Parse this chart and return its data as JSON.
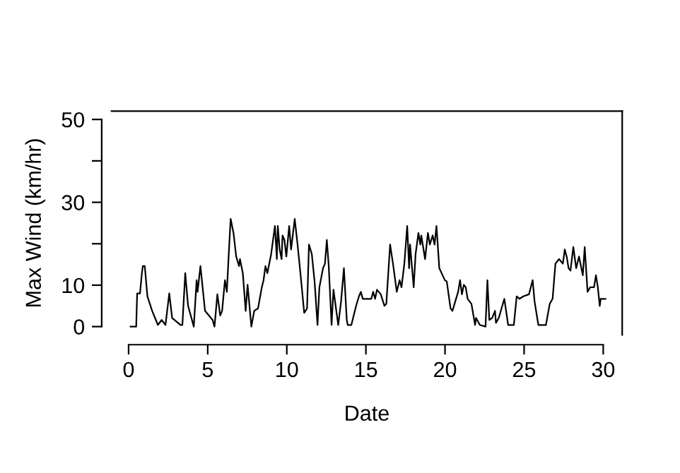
{
  "chart_data": {
    "type": "line",
    "xlabel": "Date",
    "ylabel": "Max Wind (km/hr)",
    "x": [
      0.12,
      0.48,
      0.54,
      0.72,
      0.84,
      0.9,
      1.02,
      1.19,
      1.49,
      1.85,
      2.09,
      2.33,
      2.57,
      2.75,
      3.28,
      3.4,
      3.58,
      3.76,
      4.12,
      4.3,
      4.36,
      4.54,
      4.83,
      5.31,
      5.43,
      5.61,
      5.79,
      5.91,
      6.09,
      6.21,
      6.33,
      6.45,
      6.63,
      6.8,
      6.98,
      7.04,
      7.22,
      7.4,
      7.52,
      7.76,
      7.94,
      8.18,
      8.42,
      8.53,
      8.65,
      8.77,
      9.01,
      9.25,
      9.37,
      9.43,
      9.55,
      9.67,
      9.73,
      9.85,
      9.97,
      10.15,
      10.27,
      10.5,
      10.68,
      10.86,
      11.1,
      11.28,
      11.4,
      11.58,
      11.76,
      11.94,
      12.06,
      12.29,
      12.41,
      12.53,
      12.65,
      12.83,
      12.95,
      13.25,
      13.43,
      13.61,
      13.79,
      13.85,
      14.08,
      14.38,
      14.56,
      14.68,
      14.8,
      15.34,
      15.46,
      15.58,
      15.7,
      15.94,
      16.17,
      16.29,
      16.53,
      16.71,
      16.95,
      17.13,
      17.25,
      17.43,
      17.61,
      17.73,
      17.79,
      18.02,
      18.14,
      18.32,
      18.44,
      18.5,
      18.74,
      18.92,
      19.04,
      19.22,
      19.34,
      19.46,
      19.64,
      19.99,
      20.11,
      20.35,
      20.47,
      20.83,
      20.95,
      21.07,
      21.19,
      21.31,
      21.43,
      21.67,
      21.9,
      21.96,
      22.2,
      22.56,
      22.68,
      22.8,
      22.98,
      23.16,
      23.22,
      23.4,
      23.75,
      23.99,
      24.35,
      24.53,
      24.71,
      24.95,
      25.31,
      25.54,
      25.66,
      25.9,
      26.14,
      26.38,
      26.62,
      26.8,
      26.98,
      27.21,
      27.45,
      27.57,
      27.69,
      27.81,
      27.93,
      28.11,
      28.29,
      28.47,
      28.71,
      28.83,
      29.01,
      29.18,
      29.42,
      29.54,
      29.66,
      29.78,
      29.84,
      30.14
    ],
    "series": [
      {
        "color": "#000000",
        "values": [
          0,
          0,
          8.0,
          8.0,
          12.9,
          14.6,
          14.6,
          7.3,
          3.8,
          0.4,
          1.6,
          0.4,
          8.0,
          2.1,
          0.4,
          0.4,
          12.9,
          5.0,
          0,
          11.2,
          8.4,
          14.6,
          3.8,
          1.6,
          0,
          7.8,
          2.7,
          3.8,
          11.2,
          8.4,
          17.5,
          26.0,
          22.6,
          16.9,
          14.6,
          16.3,
          12.9,
          3.8,
          10.1,
          0,
          3.8,
          4.4,
          9.5,
          11.2,
          14.6,
          12.9,
          17.5,
          24.3,
          16.3,
          24.3,
          18.6,
          16.3,
          22.0,
          20.9,
          16.9,
          24.3,
          18.6,
          26.0,
          19.8,
          12.9,
          3.3,
          4.4,
          19.8,
          17.5,
          10.7,
          0.4,
          9.5,
          14.1,
          15.2,
          20.9,
          14.6,
          0.4,
          8.9,
          0.4,
          6.1,
          14.1,
          1.6,
          0.4,
          0.4,
          5.0,
          7.3,
          8.4,
          6.7,
          6.7,
          8.4,
          6.7,
          8.9,
          7.8,
          5.0,
          5.5,
          19.8,
          15.2,
          8.4,
          11.2,
          9.5,
          15.2,
          24.3,
          14.1,
          19.8,
          9.5,
          17.5,
          22.6,
          19.8,
          22.0,
          16.3,
          22.6,
          19.8,
          22.0,
          19.8,
          24.3,
          14.1,
          11.2,
          10.9,
          4.4,
          3.8,
          8.4,
          11.2,
          7.8,
          10.1,
          9.5,
          6.7,
          5.5,
          0.4,
          2.1,
          0.4,
          0,
          11.2,
          1.6,
          2.1,
          3.8,
          0.9,
          2.1,
          6.7,
          0.4,
          0.4,
          7.3,
          6.7,
          7.3,
          7.8,
          11.2,
          6.1,
          0.4,
          0.4,
          0.4,
          5.5,
          6.7,
          15.2,
          16.3,
          15.2,
          18.6,
          16.9,
          14.1,
          13.5,
          19.2,
          14.1,
          16.9,
          12.4,
          19.2,
          8.4,
          9.5,
          9.5,
          12.4,
          9.5,
          5.0,
          6.7,
          6.7
        ]
      }
    ],
    "xlim": [
      -1.08,
      31.2
    ],
    "ylim": [
      -2,
      52
    ],
    "xticks": [
      0,
      5,
      10,
      15,
      20,
      25,
      30
    ],
    "yticks": [
      0,
      10,
      {
        "value": 20,
        "label": null
      },
      30,
      {
        "value": 40,
        "label": null
      },
      50
    ],
    "line_style": "solid"
  }
}
